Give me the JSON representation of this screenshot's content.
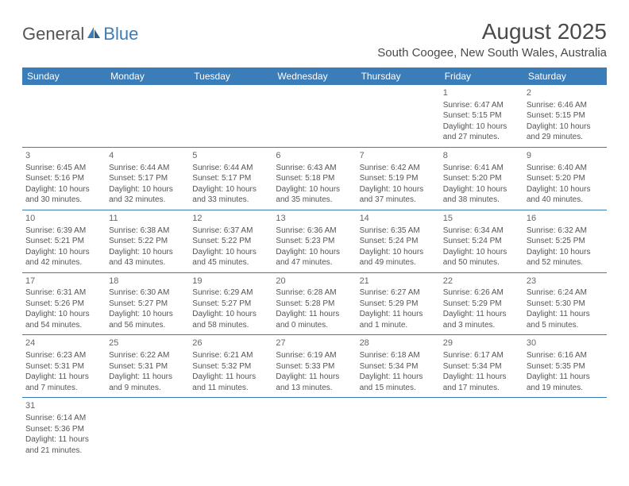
{
  "logo": {
    "part1": "General",
    "part2": "Blue"
  },
  "title": "August 2025",
  "location": "South Coogee, New South Wales, Australia",
  "colors": {
    "header_bg": "#3a7db8",
    "header_text": "#ffffff",
    "cell_border": "#3a7db8",
    "body_text": "#555555",
    "title_text": "#4a4a4a"
  },
  "day_headers": [
    "Sunday",
    "Monday",
    "Tuesday",
    "Wednesday",
    "Thursday",
    "Friday",
    "Saturday"
  ],
  "weeks": [
    [
      null,
      null,
      null,
      null,
      null,
      {
        "n": "1",
        "sr": "Sunrise: 6:47 AM",
        "ss": "Sunset: 5:15 PM",
        "d1": "Daylight: 10 hours",
        "d2": "and 27 minutes."
      },
      {
        "n": "2",
        "sr": "Sunrise: 6:46 AM",
        "ss": "Sunset: 5:15 PM",
        "d1": "Daylight: 10 hours",
        "d2": "and 29 minutes."
      }
    ],
    [
      {
        "n": "3",
        "sr": "Sunrise: 6:45 AM",
        "ss": "Sunset: 5:16 PM",
        "d1": "Daylight: 10 hours",
        "d2": "and 30 minutes."
      },
      {
        "n": "4",
        "sr": "Sunrise: 6:44 AM",
        "ss": "Sunset: 5:17 PM",
        "d1": "Daylight: 10 hours",
        "d2": "and 32 minutes."
      },
      {
        "n": "5",
        "sr": "Sunrise: 6:44 AM",
        "ss": "Sunset: 5:17 PM",
        "d1": "Daylight: 10 hours",
        "d2": "and 33 minutes."
      },
      {
        "n": "6",
        "sr": "Sunrise: 6:43 AM",
        "ss": "Sunset: 5:18 PM",
        "d1": "Daylight: 10 hours",
        "d2": "and 35 minutes."
      },
      {
        "n": "7",
        "sr": "Sunrise: 6:42 AM",
        "ss": "Sunset: 5:19 PM",
        "d1": "Daylight: 10 hours",
        "d2": "and 37 minutes."
      },
      {
        "n": "8",
        "sr": "Sunrise: 6:41 AM",
        "ss": "Sunset: 5:20 PM",
        "d1": "Daylight: 10 hours",
        "d2": "and 38 minutes."
      },
      {
        "n": "9",
        "sr": "Sunrise: 6:40 AM",
        "ss": "Sunset: 5:20 PM",
        "d1": "Daylight: 10 hours",
        "d2": "and 40 minutes."
      }
    ],
    [
      {
        "n": "10",
        "sr": "Sunrise: 6:39 AM",
        "ss": "Sunset: 5:21 PM",
        "d1": "Daylight: 10 hours",
        "d2": "and 42 minutes."
      },
      {
        "n": "11",
        "sr": "Sunrise: 6:38 AM",
        "ss": "Sunset: 5:22 PM",
        "d1": "Daylight: 10 hours",
        "d2": "and 43 minutes."
      },
      {
        "n": "12",
        "sr": "Sunrise: 6:37 AM",
        "ss": "Sunset: 5:22 PM",
        "d1": "Daylight: 10 hours",
        "d2": "and 45 minutes."
      },
      {
        "n": "13",
        "sr": "Sunrise: 6:36 AM",
        "ss": "Sunset: 5:23 PM",
        "d1": "Daylight: 10 hours",
        "d2": "and 47 minutes."
      },
      {
        "n": "14",
        "sr": "Sunrise: 6:35 AM",
        "ss": "Sunset: 5:24 PM",
        "d1": "Daylight: 10 hours",
        "d2": "and 49 minutes."
      },
      {
        "n": "15",
        "sr": "Sunrise: 6:34 AM",
        "ss": "Sunset: 5:24 PM",
        "d1": "Daylight: 10 hours",
        "d2": "and 50 minutes."
      },
      {
        "n": "16",
        "sr": "Sunrise: 6:32 AM",
        "ss": "Sunset: 5:25 PM",
        "d1": "Daylight: 10 hours",
        "d2": "and 52 minutes."
      }
    ],
    [
      {
        "n": "17",
        "sr": "Sunrise: 6:31 AM",
        "ss": "Sunset: 5:26 PM",
        "d1": "Daylight: 10 hours",
        "d2": "and 54 minutes."
      },
      {
        "n": "18",
        "sr": "Sunrise: 6:30 AM",
        "ss": "Sunset: 5:27 PM",
        "d1": "Daylight: 10 hours",
        "d2": "and 56 minutes."
      },
      {
        "n": "19",
        "sr": "Sunrise: 6:29 AM",
        "ss": "Sunset: 5:27 PM",
        "d1": "Daylight: 10 hours",
        "d2": "and 58 minutes."
      },
      {
        "n": "20",
        "sr": "Sunrise: 6:28 AM",
        "ss": "Sunset: 5:28 PM",
        "d1": "Daylight: 11 hours",
        "d2": "and 0 minutes."
      },
      {
        "n": "21",
        "sr": "Sunrise: 6:27 AM",
        "ss": "Sunset: 5:29 PM",
        "d1": "Daylight: 11 hours",
        "d2": "and 1 minute."
      },
      {
        "n": "22",
        "sr": "Sunrise: 6:26 AM",
        "ss": "Sunset: 5:29 PM",
        "d1": "Daylight: 11 hours",
        "d2": "and 3 minutes."
      },
      {
        "n": "23",
        "sr": "Sunrise: 6:24 AM",
        "ss": "Sunset: 5:30 PM",
        "d1": "Daylight: 11 hours",
        "d2": "and 5 minutes."
      }
    ],
    [
      {
        "n": "24",
        "sr": "Sunrise: 6:23 AM",
        "ss": "Sunset: 5:31 PM",
        "d1": "Daylight: 11 hours",
        "d2": "and 7 minutes."
      },
      {
        "n": "25",
        "sr": "Sunrise: 6:22 AM",
        "ss": "Sunset: 5:31 PM",
        "d1": "Daylight: 11 hours",
        "d2": "and 9 minutes."
      },
      {
        "n": "26",
        "sr": "Sunrise: 6:21 AM",
        "ss": "Sunset: 5:32 PM",
        "d1": "Daylight: 11 hours",
        "d2": "and 11 minutes."
      },
      {
        "n": "27",
        "sr": "Sunrise: 6:19 AM",
        "ss": "Sunset: 5:33 PM",
        "d1": "Daylight: 11 hours",
        "d2": "and 13 minutes."
      },
      {
        "n": "28",
        "sr": "Sunrise: 6:18 AM",
        "ss": "Sunset: 5:34 PM",
        "d1": "Daylight: 11 hours",
        "d2": "and 15 minutes."
      },
      {
        "n": "29",
        "sr": "Sunrise: 6:17 AM",
        "ss": "Sunset: 5:34 PM",
        "d1": "Daylight: 11 hours",
        "d2": "and 17 minutes."
      },
      {
        "n": "30",
        "sr": "Sunrise: 6:16 AM",
        "ss": "Sunset: 5:35 PM",
        "d1": "Daylight: 11 hours",
        "d2": "and 19 minutes."
      }
    ],
    [
      {
        "n": "31",
        "sr": "Sunrise: 6:14 AM",
        "ss": "Sunset: 5:36 PM",
        "d1": "Daylight: 11 hours",
        "d2": "and 21 minutes."
      },
      null,
      null,
      null,
      null,
      null,
      null
    ]
  ]
}
